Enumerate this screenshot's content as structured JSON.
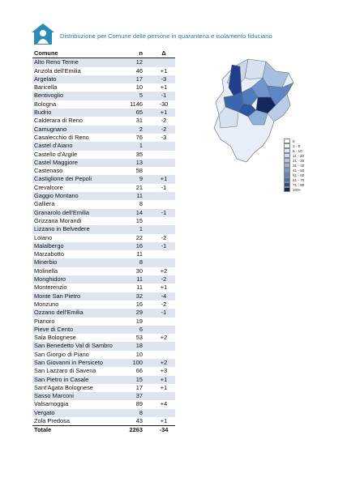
{
  "header": {
    "title": "Distribuzione per Comune delle persone in quarantena e isolamento fiduciario"
  },
  "table": {
    "columns": [
      "Comune",
      "n",
      "Δ"
    ],
    "rows": [
      [
        "Alto Reno Terme",
        12,
        null
      ],
      [
        "Anzola dell'Emilia",
        46,
        "+1"
      ],
      [
        "Argelato",
        17,
        "-3"
      ],
      [
        "Baricella",
        10,
        "+1"
      ],
      [
        "Bentivoglio",
        5,
        "-1"
      ],
      [
        "Bologna",
        1146,
        "-30"
      ],
      [
        "Budrio",
        65,
        "+1"
      ],
      [
        "Calderara di Reno",
        31,
        "-2"
      ],
      [
        "Camugnano",
        2,
        "-2"
      ],
      [
        "Casalecchio di Reno",
        76,
        "-3"
      ],
      [
        "Castel d'Aiano",
        1,
        null
      ],
      [
        "Castello d'Argile",
        35,
        null
      ],
      [
        "Castel Maggiore",
        13,
        null
      ],
      [
        "Castenaso",
        58,
        null
      ],
      [
        "Castiglione dei Pepoli",
        9,
        "+1"
      ],
      [
        "Crevalcore",
        21,
        "-1"
      ],
      [
        "Gaggio Montano",
        11,
        null
      ],
      [
        "Galliera",
        8,
        null
      ],
      [
        "Granarolo dell'Emilia",
        14,
        "-1"
      ],
      [
        "Grizzana Morandi",
        15,
        null
      ],
      [
        "Lizzano in Belvedere",
        1,
        null
      ],
      [
        "Loiano",
        22,
        "-2"
      ],
      [
        "Malalbergo",
        16,
        "-1"
      ],
      [
        "Marzabotto",
        11,
        null
      ],
      [
        "Minerbio",
        8,
        null
      ],
      [
        "Molinella",
        30,
        "+2"
      ],
      [
        "Monghidoro",
        11,
        "-2"
      ],
      [
        "Monterenzio",
        11,
        "+1"
      ],
      [
        "Monte San Pietro",
        32,
        "-4"
      ],
      [
        "Monzuno",
        16,
        "-2"
      ],
      [
        "Ozzano dell'Emilia",
        29,
        "-1"
      ],
      [
        "Pianoro",
        19,
        null
      ],
      [
        "Pieve di Cento",
        6,
        null
      ],
      [
        "Sala Bolognese",
        53,
        "+2"
      ],
      [
        "San Benedetto Val di Sambro",
        18,
        null
      ],
      [
        "San Giorgio di Piano",
        10,
        null
      ],
      [
        "San Giovanni in Persiceto",
        100,
        "+2"
      ],
      [
        "San Lazzaro di Savena",
        66,
        "+3"
      ],
      [
        "San Pietro in Casale",
        15,
        "+1"
      ],
      [
        "Sant'Agata Bolognese",
        17,
        "+1"
      ],
      [
        "Sasso Marconi",
        37,
        null
      ],
      [
        "Valsamoggia",
        89,
        "+4"
      ],
      [
        "Vergato",
        8,
        null
      ],
      [
        "Zola Predosa",
        43,
        "+1"
      ],
      [
        "Totale",
        2263,
        "-34"
      ]
    ]
  },
  "legend": {
    "items": [
      "0",
      "1 - 5",
      "6 - 10",
      "11 - 20",
      "21 - 30",
      "31 - 40",
      "41 - 50",
      "51 - 60",
      "61 - 70",
      "71 - 80",
      "100+"
    ]
  }
}
